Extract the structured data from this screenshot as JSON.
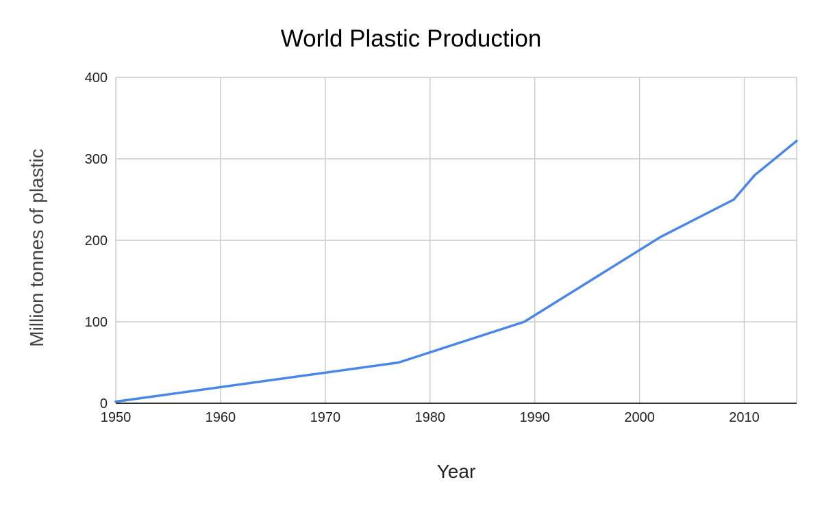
{
  "chart_data": {
    "type": "line",
    "title": "World Plastic Production",
    "xlabel": "Year",
    "ylabel": "Million tonnes of plastic",
    "xlim": [
      1950,
      2015
    ],
    "ylim": [
      0,
      400
    ],
    "x_ticks": [
      1950,
      1960,
      1970,
      1980,
      1990,
      2000,
      2010
    ],
    "y_ticks": [
      0,
      100,
      200,
      300,
      400
    ],
    "grid": true,
    "legend": "none",
    "series": [
      {
        "name": "Million tonnes of plastic",
        "color": "#4a86e8",
        "x": [
          1950,
          1977,
          1989,
          2002,
          2009,
          2011,
          2015
        ],
        "values": [
          2,
          50,
          100,
          204,
          250,
          280,
          322
        ]
      }
    ]
  },
  "colors": {
    "line": "#4a86e8",
    "grid": "#cccccc",
    "baseline": "#333333"
  }
}
